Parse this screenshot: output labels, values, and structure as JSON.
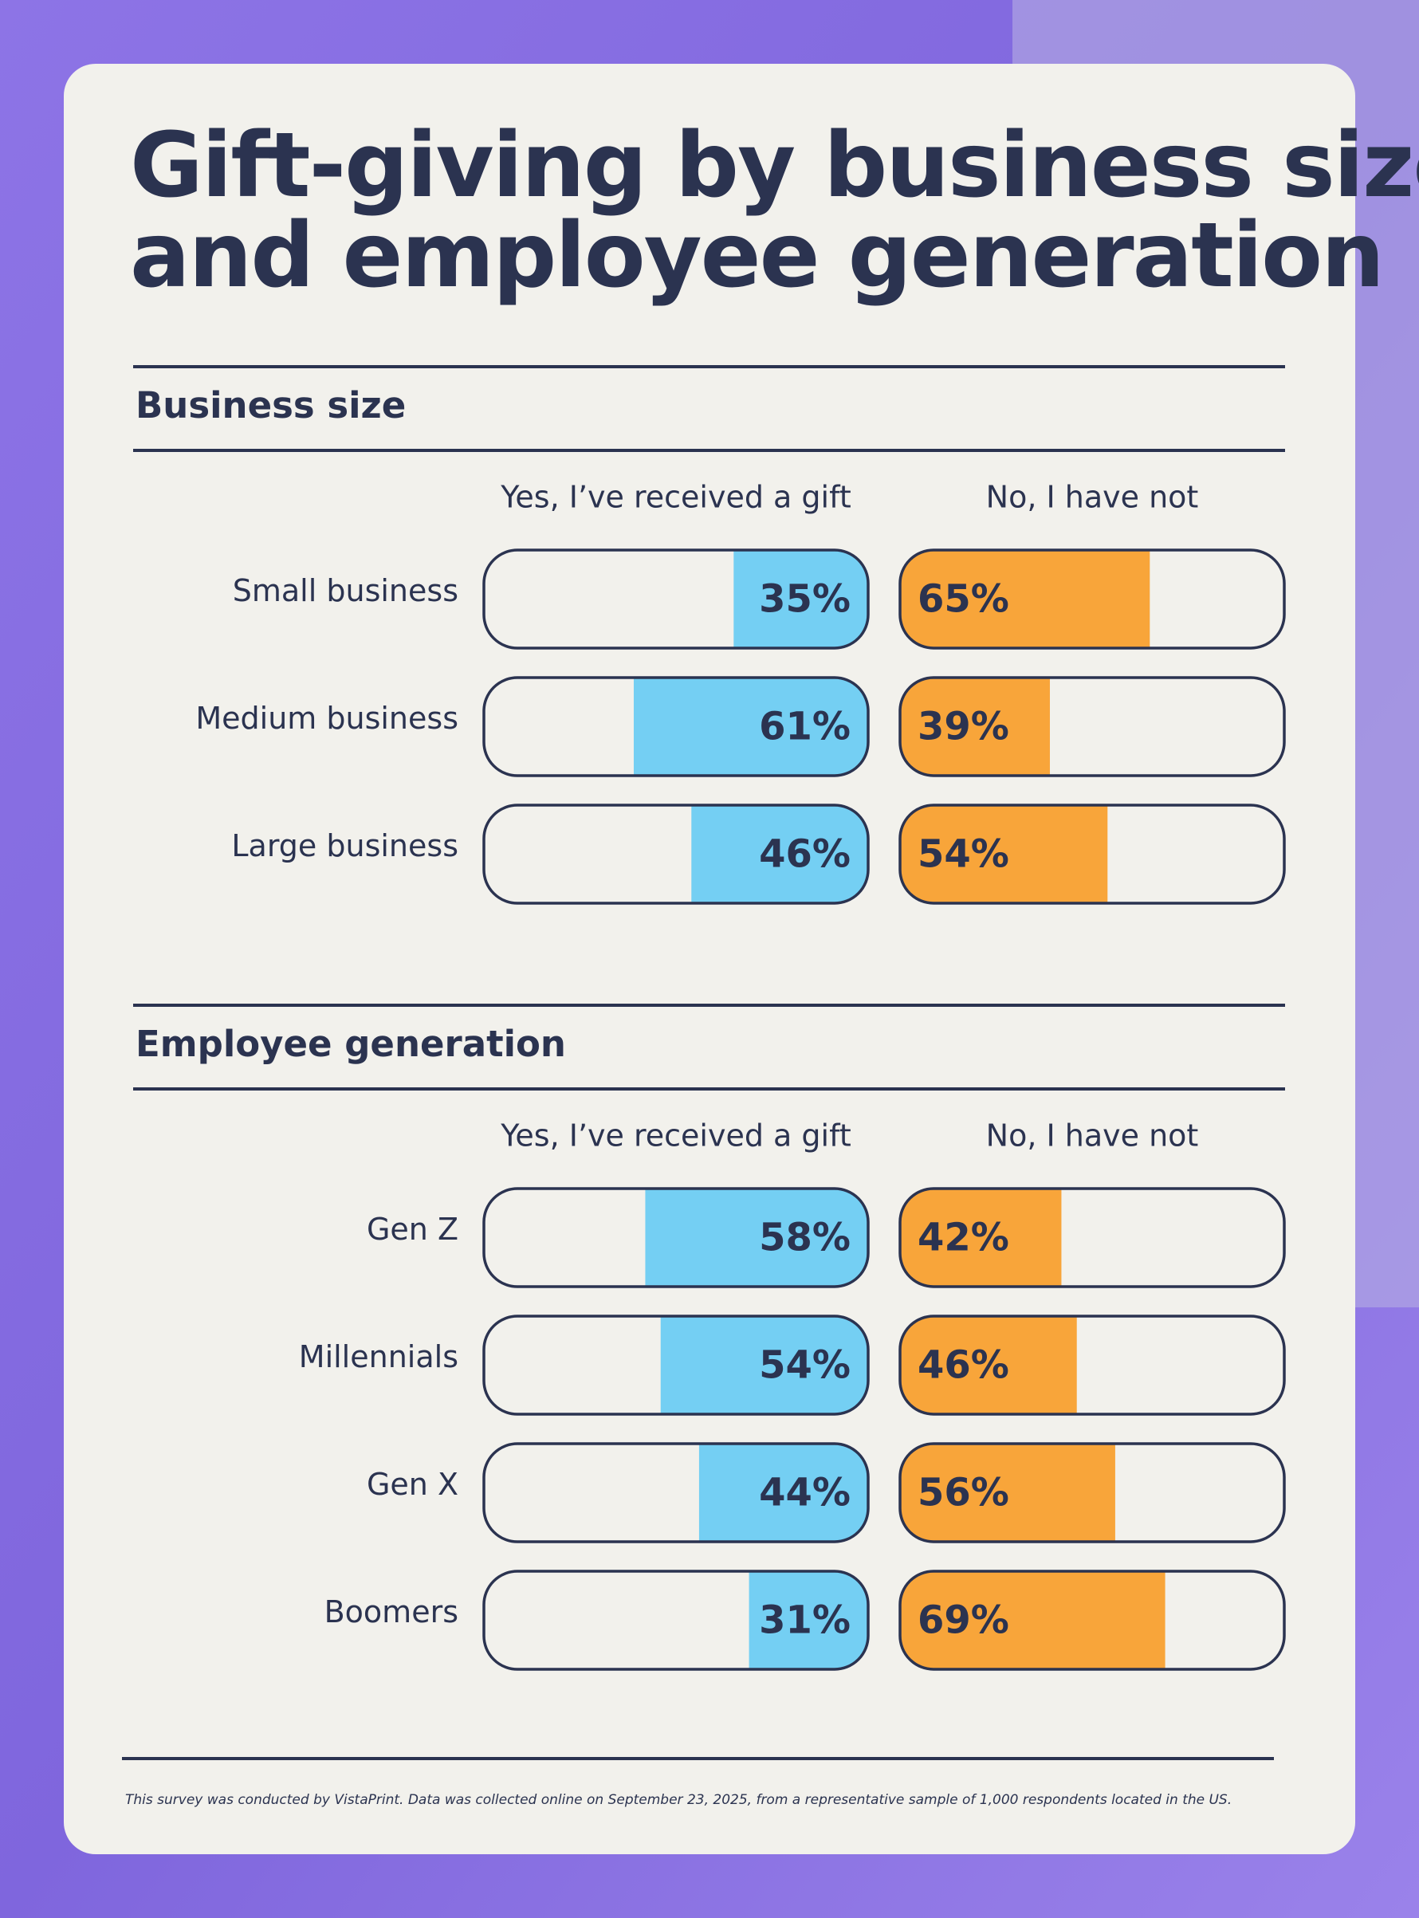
{
  "title": [
    "Gift-giving by business size",
    "and employee generation"
  ],
  "footnote": "This survey was conducted by VistaPrint. Data was collected online on September 23, 2025, from a representative sample of 1,000 respondents located in the US.",
  "chart_data": [
    {
      "type": "bar",
      "title": "Business size",
      "categories": [
        "Small business",
        "Medium business",
        "Large business"
      ],
      "xlim": [
        0,
        100
      ],
      "series": [
        {
          "name": "Yes, I’ve received a gift",
          "color": "#74cff3",
          "values": [
            35,
            61,
            46
          ],
          "value_labels": [
            "35%",
            "61%",
            "46%"
          ]
        },
        {
          "name": "No, I have not",
          "color": "#f8a53a",
          "values": [
            65,
            39,
            54
          ],
          "value_labels": [
            "65%",
            "39%",
            "54%"
          ]
        }
      ]
    },
    {
      "type": "bar",
      "title": "Employee generation",
      "categories": [
        "Gen Z",
        "Millennials",
        "Gen X",
        "Boomers"
      ],
      "xlim": [
        0,
        100
      ],
      "series": [
        {
          "name": "Yes, I’ve received a gift",
          "color": "#74cff3",
          "values": [
            58,
            54,
            44,
            31
          ],
          "value_labels": [
            "58%",
            "54%",
            "44%",
            "31%"
          ]
        },
        {
          "name": "No, I have not",
          "color": "#f8a53a",
          "values": [
            42,
            46,
            56,
            69
          ],
          "value_labels": [
            "42%",
            "46%",
            "56%",
            "69%"
          ]
        }
      ]
    }
  ]
}
